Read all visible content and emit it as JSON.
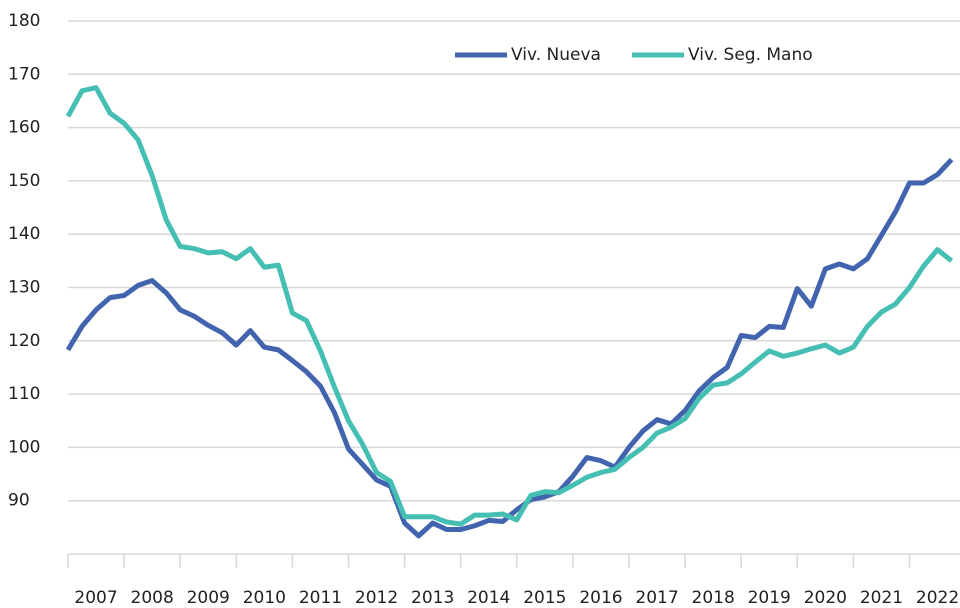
{
  "chart_data": {
    "type": "line",
    "x": [
      2007,
      2007.25,
      2007.5,
      2007.75,
      2008,
      2008.25,
      2008.5,
      2008.75,
      2009,
      2009.25,
      2009.5,
      2009.75,
      2010,
      2010.25,
      2010.5,
      2010.75,
      2011,
      2011.25,
      2011.5,
      2011.75,
      2012,
      2012.25,
      2012.5,
      2012.75,
      2013,
      2013.25,
      2013.5,
      2013.75,
      2014,
      2014.25,
      2014.5,
      2014.75,
      2015,
      2015.25,
      2015.5,
      2015.75,
      2016,
      2016.25,
      2016.5,
      2016.75,
      2017,
      2017.25,
      2017.5,
      2017.75,
      2018,
      2018.25,
      2018.5,
      2018.75,
      2019,
      2019.25,
      2019.5,
      2019.75,
      2020,
      2020.25,
      2020.5,
      2020.75,
      2021,
      2021.25,
      2021.5,
      2021.75,
      2022,
      2022.25,
      2022.5,
      2022.75
    ],
    "series": [
      {
        "name": "Viv. Nueva",
        "color": "#4264ae",
        "values": [
          118.3,
          122.7,
          125.8,
          128.1,
          128.5,
          130.4,
          131.3,
          129,
          125.8,
          124.6,
          122.9,
          121.5,
          119.2,
          121.9,
          118.8,
          118.3,
          116.3,
          114.2,
          111.5,
          106.5,
          99.7,
          96.8,
          93.9,
          92.7,
          85.8,
          83.4,
          85.8,
          84.6,
          84.6,
          85.3,
          86.3,
          86.1,
          88.3,
          90.2,
          90.7,
          91.7,
          94.6,
          98.1,
          97.5,
          96.3,
          100,
          103.1,
          105.2,
          104.4,
          106.9,
          110.6,
          113.1,
          115,
          121,
          120.6,
          122.7,
          122.5,
          129.8,
          126.5,
          133.5,
          134.4,
          133.5,
          135.4,
          139.8,
          144.2,
          149.6,
          149.6,
          151.2,
          154
        ]
      },
      {
        "name": "Viv. Seg. Mano",
        "color": "#45bfb3",
        "values": [
          162.1,
          166.9,
          167.5,
          162.7,
          160.8,
          157.7,
          151,
          142.7,
          137.7,
          137.3,
          136.5,
          136.7,
          135.4,
          137.3,
          133.8,
          134.2,
          125.2,
          123.8,
          118.1,
          111.3,
          105,
          100.6,
          95.3,
          93.6,
          87,
          87,
          87,
          86,
          85.6,
          87.3,
          87.3,
          87.5,
          86.4,
          91,
          91.7,
          91.5,
          92.9,
          94.4,
          95.3,
          95.9,
          98.1,
          100,
          102.7,
          103.8,
          105.4,
          109.2,
          111.7,
          112.1,
          113.8,
          116,
          118.1,
          117.1,
          117.7,
          118.5,
          119.2,
          117.7,
          118.8,
          122.7,
          125.4,
          126.9,
          130,
          134,
          137.1,
          135
        ]
      }
    ],
    "xlim": [
      2007,
      2022.75
    ],
    "xticks": [
      2007,
      2008,
      2009,
      2010,
      2011,
      2012,
      2013,
      2014,
      2015,
      2016,
      2017,
      2018,
      2019,
      2020,
      2021,
      2022
    ],
    "ylim": [
      80,
      180
    ],
    "yticks": [
      90,
      100,
      110,
      120,
      130,
      140,
      150,
      160,
      170,
      180
    ],
    "grid": true,
    "legend": "top"
  }
}
